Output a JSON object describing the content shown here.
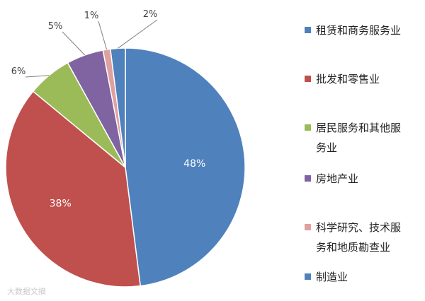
{
  "chart_data": {
    "type": "pie",
    "categories": [
      "租赁和商务服务业",
      "批发和零售业",
      "居民服务和其他服务业",
      "房地产业",
      "科学研究、技术服务和地质勘查业",
      "制造业"
    ],
    "values": [
      48,
      38,
      6,
      5,
      1,
      2
    ],
    "value_labels": [
      "48%",
      "38%",
      "6%",
      "5%",
      "1%",
      "2%"
    ],
    "colors": [
      "#4f81bd",
      "#c0504d",
      "#9bbb59",
      "#8064a2",
      "#e0a0a0",
      "#4f81bd"
    ],
    "legend": {
      "placement": "right",
      "entries": [
        "租赁和商务服务业",
        "批发和零售业",
        "居民服务和其他服务业",
        "房地产业",
        "科学研究、技术服务和地质勘查业",
        "制造业"
      ]
    },
    "start_angle_deg": 0,
    "direction": "clockwise"
  },
  "watermark": "大数据文摘"
}
